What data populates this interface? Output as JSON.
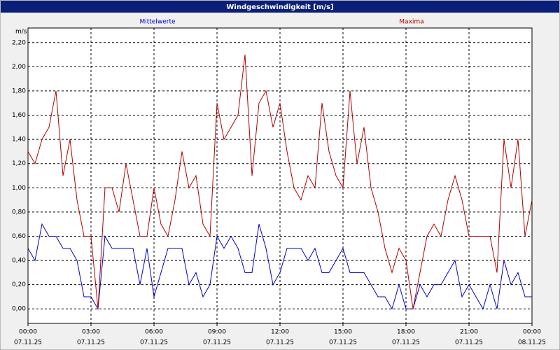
{
  "chart_data": {
    "type": "line",
    "title": "Windgeschwindigkeit [m/s]",
    "y_label": "m/s",
    "x": [
      0,
      20,
      40,
      60,
      80,
      100,
      120,
      140,
      160,
      180,
      200,
      220,
      240,
      260,
      280,
      300,
      320,
      340,
      360,
      380,
      400,
      420,
      440,
      460,
      480,
      500,
      520,
      540,
      560,
      580,
      600,
      620,
      640,
      660,
      680,
      700,
      720,
      740,
      760,
      780,
      800,
      820,
      840,
      860,
      880,
      900,
      920,
      940,
      960,
      980,
      1000,
      1020,
      1040,
      1060,
      1080,
      1100,
      1120,
      1140,
      1160,
      1180,
      1200,
      1220,
      1240,
      1260,
      1280,
      1300,
      1320,
      1340,
      1360,
      1380,
      1400,
      1420,
      1440
    ],
    "series": [
      {
        "name": "Mittelwerte",
        "color": "#0000cc",
        "values": [
          0.5,
          0.4,
          0.7,
          0.6,
          0.6,
          0.5,
          0.5,
          0.4,
          0.1,
          0.1,
          0.0,
          0.6,
          0.5,
          0.5,
          0.5,
          0.5,
          0.2,
          0.5,
          0.1,
          0.3,
          0.5,
          0.5,
          0.5,
          0.2,
          0.3,
          0.1,
          0.2,
          0.6,
          0.5,
          0.6,
          0.5,
          0.3,
          0.3,
          0.7,
          0.5,
          0.2,
          0.3,
          0.5,
          0.5,
          0.5,
          0.4,
          0.5,
          0.3,
          0.3,
          0.4,
          0.5,
          0.3,
          0.3,
          0.3,
          0.2,
          0.1,
          0.1,
          0.0,
          0.2,
          0.0,
          0.0,
          0.2,
          0.1,
          0.2,
          0.2,
          0.3,
          0.4,
          0.1,
          0.2,
          0.1,
          0.0,
          0.2,
          0.0,
          0.4,
          0.2,
          0.3,
          0.1,
          0.1
        ]
      },
      {
        "name": "Maxima",
        "color": "#b00000",
        "values": [
          1.3,
          1.2,
          1.4,
          1.5,
          1.8,
          1.1,
          1.4,
          0.9,
          0.6,
          0.6,
          0.0,
          1.0,
          1.0,
          0.8,
          1.2,
          0.9,
          0.6,
          0.6,
          1.0,
          0.7,
          0.6,
          0.9,
          1.3,
          1.0,
          1.1,
          0.7,
          0.6,
          1.7,
          1.4,
          1.5,
          1.6,
          2.1,
          1.1,
          1.7,
          1.8,
          1.5,
          1.7,
          1.3,
          1.0,
          0.9,
          1.1,
          1.0,
          1.7,
          1.3,
          1.1,
          1.0,
          1.8,
          1.2,
          1.5,
          1.0,
          0.8,
          0.5,
          0.3,
          0.5,
          0.4,
          0.0,
          0.3,
          0.6,
          0.7,
          0.6,
          0.9,
          1.1,
          0.9,
          0.6,
          0.6,
          0.6,
          0.6,
          0.3,
          1.4,
          1.0,
          1.4,
          0.6,
          0.9
        ]
      }
    ],
    "xlim": [
      0,
      1440
    ],
    "xticks": [
      {
        "value": 0,
        "label": "00:00"
      },
      {
        "value": 180,
        "label": "03:00"
      },
      {
        "value": 360,
        "label": "06:00"
      },
      {
        "value": 540,
        "label": "09:00"
      },
      {
        "value": 720,
        "label": "12:00"
      },
      {
        "value": 900,
        "label": "15:00"
      },
      {
        "value": 1080,
        "label": "18:00"
      },
      {
        "value": 1260,
        "label": "21:00"
      },
      {
        "value": 1440,
        "label": "00:00"
      }
    ],
    "xtick_dates": [
      "07.11.25",
      "07.11.25",
      "07.11.25",
      "07.11.25",
      "07.11.25",
      "07.11.25",
      "07.11.25",
      "07.11.25",
      "08.11.25"
    ],
    "ylim": [
      -0.12,
      2.32
    ],
    "yticks": [
      {
        "value": 0,
        "label": "0,00"
      },
      {
        "value": 0.2,
        "label": "0,20"
      },
      {
        "value": 0.4,
        "label": "0,40"
      },
      {
        "value": 0.6,
        "label": "0,60"
      },
      {
        "value": 0.8,
        "label": "0,80"
      },
      {
        "value": 1.0,
        "label": "1,00"
      },
      {
        "value": 1.2,
        "label": "1,20"
      },
      {
        "value": 1.4,
        "label": "1,40"
      },
      {
        "value": 1.6,
        "label": "1,60"
      },
      {
        "value": 1.8,
        "label": "1,80"
      },
      {
        "value": 2.0,
        "label": "2,00"
      },
      {
        "value": 2.2,
        "label": "2,20"
      }
    ],
    "grid": true
  }
}
